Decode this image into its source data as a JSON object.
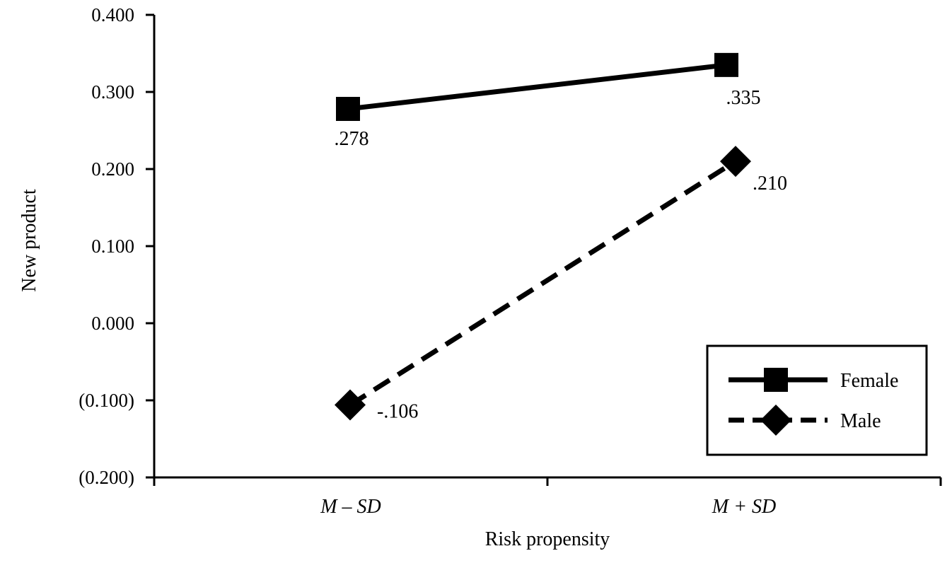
{
  "chart_data": {
    "type": "line",
    "categories": [
      "M – SD",
      "M + SD"
    ],
    "xlabel": "Risk propensity",
    "ylabel": "New product",
    "ylim": [
      -0.2,
      0.4
    ],
    "yticks": [
      0.4,
      0.3,
      0.2,
      0.1,
      0.0,
      -0.1,
      -0.2
    ],
    "ytick_labels": [
      "0.400",
      "0.300",
      "0.200",
      "0.100",
      "0.000",
      "(0.100)",
      "(0.200)"
    ],
    "grid": false,
    "legend_position": "bottom-right",
    "series": [
      {
        "name": "Female",
        "values": [
          0.278,
          0.335
        ],
        "data_labels": [
          ".278",
          ".335"
        ],
        "line_style": "solid",
        "marker": "square",
        "color": "#000000"
      },
      {
        "name": "Male",
        "values": [
          -0.106,
          0.21
        ],
        "data_labels": [
          "-.106",
          ".210"
        ],
        "line_style": "dashed",
        "marker": "diamond",
        "color": "#000000"
      }
    ]
  }
}
